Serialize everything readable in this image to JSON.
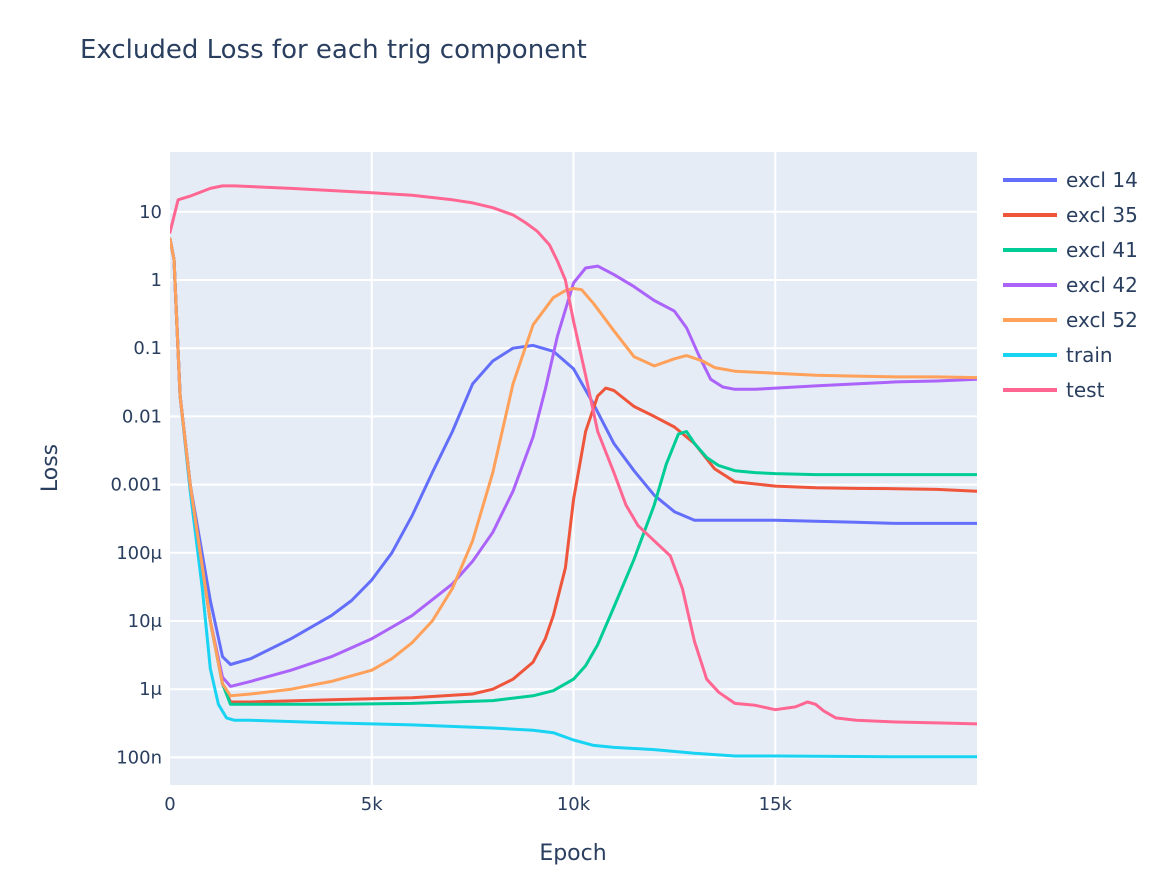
{
  "title": "Excluded Loss for each trig component",
  "xaxis": {
    "title": "Epoch",
    "ticks": [
      {
        "label": "0",
        "value": 0
      },
      {
        "label": "5k",
        "value": 5000
      },
      {
        "label": "10k",
        "value": 10000
      },
      {
        "label": "15k",
        "value": 15000
      }
    ]
  },
  "yaxis": {
    "title": "Loss",
    "ticks": [
      {
        "label": "10",
        "value": 10
      },
      {
        "label": "1",
        "value": 1
      },
      {
        "label": "0.1",
        "value": 0.1
      },
      {
        "label": "0.01",
        "value": 0.01
      },
      {
        "label": "0.001",
        "value": 0.001
      },
      {
        "label": "100μ",
        "value": 0.0001
      },
      {
        "label": "10μ",
        "value": 1e-05
      },
      {
        "label": "1μ",
        "value": 1e-06
      },
      {
        "label": "100n",
        "value": 1e-07
      }
    ]
  },
  "colors": {
    "plot_bg": "#e5ecf6",
    "grid": "#ffffff",
    "text": "#2a3f5f"
  },
  "chart_data": {
    "type": "line",
    "title": "Excluded Loss for each trig component",
    "xlabel": "Epoch",
    "ylabel": "Loss",
    "yscale": "log",
    "xlim": [
      0,
      20000
    ],
    "ylim": [
      3e-08,
      300
    ],
    "grid": true,
    "legend_position": "right",
    "series": [
      {
        "name": "excl 14",
        "color": "#636efa",
        "x": [
          0,
          100,
          250,
          500,
          1000,
          1300,
          1500,
          2000,
          3000,
          4000,
          4500,
          5000,
          5500,
          6000,
          6500,
          7000,
          7500,
          8000,
          8500,
          9000,
          9500,
          10000,
          10500,
          11000,
          11500,
          12000,
          12500,
          13000,
          14000,
          15000,
          16000,
          17000,
          18000,
          19000,
          20000
        ],
        "y": [
          4,
          2,
          0.02,
          0.001,
          2e-05,
          3e-06,
          2.3e-06,
          2.8e-06,
          5.5e-06,
          1.2e-05,
          2e-05,
          4e-05,
          0.0001,
          0.00035,
          0.0015,
          0.006,
          0.03,
          0.065,
          0.1,
          0.11,
          0.09,
          0.05,
          0.015,
          0.004,
          0.0016,
          0.0007,
          0.0004,
          0.0003,
          0.0003,
          0.0003,
          0.00029,
          0.00028,
          0.00027,
          0.00027,
          0.00027
        ]
      },
      {
        "name": "excl 35",
        "color": "#ef553b",
        "x": [
          0,
          100,
          250,
          500,
          1000,
          1300,
          1500,
          2000,
          4000,
          6000,
          7500,
          8000,
          8500,
          9000,
          9300,
          9500,
          9800,
          10000,
          10300,
          10600,
          10800,
          11000,
          11500,
          12000,
          12500,
          13000,
          13500,
          14000,
          15000,
          16000,
          17000,
          18000,
          19000,
          20000
        ],
        "y": [
          4,
          2,
          0.02,
          0.001,
          1e-05,
          1.2e-06,
          6.5e-07,
          6.5e-07,
          7e-07,
          7.5e-07,
          8.5e-07,
          1e-06,
          1.4e-06,
          2.5e-06,
          5.5e-06,
          1.2e-05,
          6e-05,
          0.0006,
          0.006,
          0.02,
          0.026,
          0.024,
          0.014,
          0.01,
          0.007,
          0.004,
          0.0017,
          0.0011,
          0.00095,
          0.0009,
          0.00088,
          0.00087,
          0.00085,
          0.0008
        ]
      },
      {
        "name": "excl 41",
        "color": "#00cc96",
        "x": [
          0,
          100,
          250,
          500,
          1000,
          1300,
          1500,
          2000,
          4000,
          6000,
          8000,
          9000,
          9500,
          10000,
          10300,
          10600,
          11000,
          11500,
          12000,
          12300,
          12600,
          12800,
          13000,
          13300,
          13600,
          14000,
          14500,
          15000,
          16000,
          17000,
          18000,
          19000,
          20000
        ],
        "y": [
          4,
          2,
          0.02,
          0.001,
          1e-05,
          1.2e-06,
          6e-07,
          6e-07,
          6e-07,
          6.2e-07,
          6.8e-07,
          8e-07,
          9.5e-07,
          1.4e-06,
          2.2e-06,
          4.5e-06,
          1.6e-05,
          8e-05,
          0.0005,
          0.002,
          0.0055,
          0.006,
          0.004,
          0.0025,
          0.0019,
          0.0016,
          0.0015,
          0.00145,
          0.0014,
          0.0014,
          0.0014,
          0.0014,
          0.0014
        ]
      },
      {
        "name": "excl 42",
        "color": "#ab63fa",
        "x": [
          0,
          100,
          250,
          500,
          1000,
          1300,
          1500,
          2000,
          3000,
          4000,
          5000,
          6000,
          7000,
          7500,
          8000,
          8500,
          9000,
          9300,
          9600,
          10000,
          10300,
          10600,
          11000,
          11500,
          12000,
          12500,
          12800,
          13100,
          13400,
          13700,
          14000,
          14500,
          15000,
          16000,
          17000,
          18000,
          19000,
          20000
        ],
        "y": [
          4,
          2,
          0.02,
          0.001,
          1e-05,
          1.5e-06,
          1.1e-06,
          1.3e-06,
          1.9e-06,
          3e-06,
          5.5e-06,
          1.2e-05,
          3.5e-05,
          7.5e-05,
          0.0002,
          0.0008,
          0.005,
          0.025,
          0.15,
          0.9,
          1.5,
          1.6,
          1.2,
          0.8,
          0.5,
          0.35,
          0.2,
          0.08,
          0.035,
          0.027,
          0.025,
          0.025,
          0.026,
          0.028,
          0.03,
          0.032,
          0.033,
          0.035
        ]
      },
      {
        "name": "excl 52",
        "color": "#ffa15a",
        "x": [
          0,
          100,
          250,
          500,
          1000,
          1300,
          1500,
          2000,
          3000,
          4000,
          5000,
          5500,
          6000,
          6500,
          7000,
          7500,
          8000,
          8500,
          9000,
          9500,
          9800,
          10000,
          10200,
          10500,
          11000,
          11500,
          12000,
          12500,
          12800,
          13200,
          13500,
          14000,
          15000,
          16000,
          17000,
          18000,
          19000,
          20000
        ],
        "y": [
          4,
          2,
          0.02,
          0.001,
          1e-05,
          1.2e-06,
          8e-07,
          8.5e-07,
          1e-06,
          1.3e-06,
          1.9e-06,
          2.8e-06,
          4.8e-06,
          1e-05,
          3e-05,
          0.00015,
          0.0015,
          0.03,
          0.22,
          0.55,
          0.7,
          0.75,
          0.72,
          0.45,
          0.18,
          0.075,
          0.055,
          0.07,
          0.078,
          0.065,
          0.052,
          0.046,
          0.043,
          0.04,
          0.039,
          0.038,
          0.038,
          0.037
        ]
      },
      {
        "name": "train",
        "color": "#19d3f3",
        "x": [
          0,
          100,
          250,
          500,
          800,
          1000,
          1200,
          1400,
          1600,
          2000,
          4000,
          6000,
          8000,
          9000,
          9500,
          10000,
          10500,
          11000,
          12000,
          13000,
          14000,
          15000,
          16000,
          17000,
          18000,
          19000,
          20000
        ],
        "y": [
          4,
          2,
          0.02,
          0.0008,
          3e-05,
          2e-06,
          6e-07,
          3.8e-07,
          3.5e-07,
          3.5e-07,
          3.2e-07,
          3e-07,
          2.7e-07,
          2.5e-07,
          2.3e-07,
          1.8e-07,
          1.5e-07,
          1.4e-07,
          1.3e-07,
          1.15e-07,
          1.05e-07,
          1.05e-07,
          1.04e-07,
          1.03e-07,
          1.02e-07,
          1.02e-07,
          1.02e-07
        ]
      },
      {
        "name": "test",
        "color": "#ff6692",
        "x": [
          0,
          200,
          500,
          1000,
          1300,
          1600,
          3000,
          5000,
          6000,
          7000,
          7500,
          8000,
          8500,
          8800,
          9100,
          9400,
          9600,
          9800,
          10000,
          10300,
          10600,
          11000,
          11300,
          11600,
          12000,
          12400,
          12700,
          13000,
          13300,
          13600,
          14000,
          14500,
          15000,
          15500,
          15800,
          16000,
          16200,
          16500,
          17000,
          18000,
          19000,
          20000
        ],
        "y": [
          5,
          15,
          17,
          22,
          24,
          24,
          22,
          19,
          17.5,
          15,
          13.5,
          11.5,
          9,
          7,
          5.2,
          3.3,
          1.9,
          1,
          0.25,
          0.04,
          0.006,
          0.0015,
          0.0005,
          0.00025,
          0.00015,
          9e-05,
          3e-05,
          5e-06,
          1.4e-06,
          9e-07,
          6.2e-07,
          5.8e-07,
          5e-07,
          5.5e-07,
          6.5e-07,
          6e-07,
          4.8e-07,
          3.8e-07,
          3.5e-07,
          3.3e-07,
          3.2e-07,
          3.1e-07
        ]
      }
    ]
  }
}
